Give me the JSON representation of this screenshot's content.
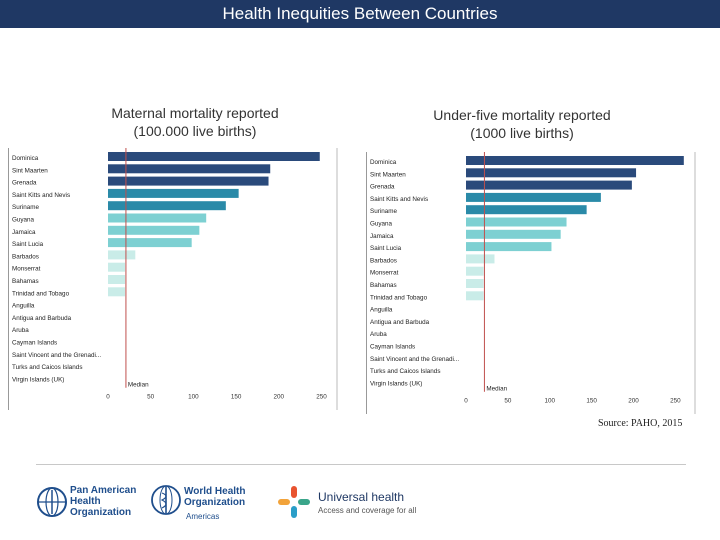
{
  "header": {
    "title": "Health Inequities Between Countries"
  },
  "source_note": "Source: PAHO, 2015",
  "logos": {
    "paho": {
      "lines": [
        "Pan American",
        "Health",
        "Organization"
      ]
    },
    "who": {
      "lines": [
        "World Health",
        "Organization"
      ],
      "sub": "Americas"
    },
    "uh": {
      "title": "Universal health",
      "subtitle": "Access and coverage for all"
    }
  },
  "colors": {
    "dark": "#2a4a7b",
    "mid": "#2a8aa8",
    "light": "#7dd0d2",
    "pale": "#c9ece8",
    "median": "#c0504d",
    "header": "#1f3864"
  },
  "chart_data": [
    {
      "type": "bar",
      "orientation": "horizontal",
      "title": "Maternal mortality reported\n(100.000 live births)",
      "categories": [
        "Dominica",
        "Sint Maarten",
        "Grenada",
        "Saint Kitts and Nevis",
        "Suriname",
        "Guyana",
        "Jamaica",
        "Saint Lucia",
        "Barbados",
        "Monserrat",
        "Bahamas",
        "Trinidad and Tobago",
        "Anguilla",
        "Antigua and Barbuda",
        "Aruba",
        "Cayman Islands",
        "Saint Vincent and the Grenadi...",
        "Turks and Caicos Islands",
        "Virgin Islands (UK)"
      ],
      "values": [
        248,
        190,
        188,
        153,
        138,
        115,
        107,
        98,
        32,
        20,
        20,
        20,
        0,
        0,
        0,
        0,
        0,
        0,
        0
      ],
      "bar_colors": [
        "dark",
        "dark",
        "dark",
        "mid",
        "mid",
        "light",
        "light",
        "light",
        "pale",
        "pale",
        "pale",
        "pale",
        "pale",
        "pale",
        "pale",
        "pale",
        "pale",
        "pale",
        "pale"
      ],
      "xticks": [
        0,
        50,
        100,
        150,
        200,
        250
      ],
      "xlim": [
        0,
        260
      ],
      "median": {
        "value": 21,
        "label": "Median"
      }
    },
    {
      "type": "bar",
      "orientation": "horizontal",
      "title": "Under-five mortality reported\n(1000 live births)",
      "categories": [
        "Dominica",
        "Sint Maarten",
        "Grenada",
        "Saint Kitts and Nevis",
        "Suriname",
        "Guyana",
        "Jamaica",
        "Saint Lucia",
        "Barbados",
        "Monserrat",
        "Bahamas",
        "Trinidad and Tobago",
        "Anguilla",
        "Antigua and Barbuda",
        "Aruba",
        "Cayman Islands",
        "Saint Vincent and the Grenadi...",
        "Turks and Caicos Islands",
        "Virgin Islands (UK)"
      ],
      "values": [
        260,
        203,
        198,
        161,
        144,
        120,
        113,
        102,
        34,
        21,
        21,
        21,
        0,
        0,
        0,
        0,
        0,
        0,
        0
      ],
      "bar_colors": [
        "dark",
        "dark",
        "dark",
        "mid",
        "mid",
        "light",
        "light",
        "light",
        "pale",
        "pale",
        "pale",
        "pale",
        "pale",
        "pale",
        "pale",
        "pale",
        "pale",
        "pale",
        "pale"
      ],
      "xticks": [
        0,
        50,
        100,
        150,
        200,
        250
      ],
      "xlim": [
        0,
        265
      ],
      "median": {
        "value": 22,
        "label": "Median"
      }
    }
  ]
}
